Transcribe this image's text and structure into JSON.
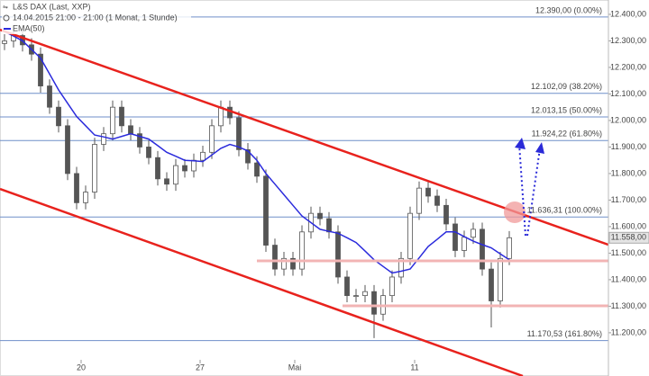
{
  "header": {
    "title": "L&S DAX (Last, XXP)",
    "subtitle": "14.04.2015 21:00 - 21:00 (1 Monat, 1 Stunde)"
  },
  "chart_data": {
    "type": "candlestick",
    "color_up": "#ffffff",
    "color_down": "#555555",
    "color_wick": "#555555",
    "open": [
      12290,
      12300,
      12320,
      12285,
      12250,
      12130,
      12050,
      11980,
      11800,
      11690,
      11730,
      11910,
      11950,
      12050,
      11980,
      11950,
      11900,
      11860,
      11780,
      11760,
      11830,
      11810,
      11850,
      11880,
      11980,
      12050,
      12010,
      11890,
      11840,
      11790,
      11530,
      11440,
      11480,
      11440,
      11580,
      11650,
      11630,
      11580,
      11410,
      11340,
      11340,
      11355,
      11270,
      11340,
      11410,
      11480,
      11650,
      11745,
      11715,
      11680,
      11610,
      11510,
      11560,
      11590,
      11440,
      11320,
      11480
    ],
    "high": [
      12325,
      12345,
      12345,
      12310,
      12275,
      12155,
      12075,
      12005,
      11825,
      11755,
      11935,
      11975,
      12075,
      12075,
      12005,
      11975,
      11925,
      11885,
      11805,
      11855,
      11855,
      11875,
      11905,
      12005,
      12075,
      12075,
      12035,
      11915,
      11865,
      11815,
      11555,
      11505,
      11505,
      11605,
      11675,
      11675,
      11655,
      11605,
      11435,
      11365,
      11380,
      11380,
      11365,
      11435,
      11505,
      11675,
      11770,
      11770,
      11740,
      11705,
      11635,
      11585,
      11615,
      11615,
      11465,
      11505,
      11583
    ],
    "low": [
      12265,
      12275,
      12260,
      12225,
      12105,
      12025,
      11955,
      11775,
      11665,
      11665,
      11705,
      11885,
      11925,
      11955,
      11925,
      11875,
      11835,
      11755,
      11735,
      11735,
      11785,
      11785,
      11825,
      11855,
      11955,
      11985,
      11865,
      11815,
      11765,
      11505,
      11415,
      11415,
      11415,
      11415,
      11555,
      11605,
      11555,
      11385,
      11315,
      11315,
      11315,
      11180,
      11245,
      11315,
      11385,
      11455,
      11625,
      11690,
      11655,
      11585,
      11485,
      11485,
      11535,
      11415,
      11220,
      11295,
      11455
    ],
    "close": [
      12300,
      12320,
      12285,
      12250,
      12130,
      12050,
      11980,
      11800,
      11690,
      11730,
      11910,
      11950,
      12050,
      11980,
      11950,
      11900,
      11860,
      11780,
      11760,
      11830,
      11810,
      11850,
      11880,
      11980,
      12050,
      12010,
      11890,
      11840,
      11790,
      11530,
      11440,
      11480,
      11440,
      11580,
      11650,
      11630,
      11580,
      11410,
      11340,
      11340,
      11355,
      11270,
      11340,
      11410,
      11480,
      11650,
      11745,
      11715,
      11680,
      11610,
      11510,
      11560,
      11590,
      11440,
      11320,
      11480,
      11558
    ],
    "overlays": [
      {
        "name": "EMA(50)",
        "color": "#2b2bdc",
        "values": [
          12335,
          12318,
          12300,
          12268,
          12235,
          12175,
          12115,
          12065,
          12015,
          11980,
          11945,
          11938,
          11930,
          11940,
          11950,
          11940,
          11930,
          11905,
          11880,
          11865,
          11850,
          11848,
          11845,
          11870,
          11895,
          11910,
          11900,
          11885,
          11850,
          11800,
          11760,
          11720,
          11680,
          11640,
          11615,
          11590,
          11582,
          11575,
          11558,
          11540,
          11508,
          11475,
          11450,
          11425,
          11432,
          11440,
          11482,
          11525,
          11552,
          11580,
          11580,
          11562,
          11545,
          11532,
          11520,
          11497,
          11475
        ]
      }
    ],
    "levels": [
      {
        "value": 12390,
        "label": "12.390,00 (0.00%)"
      },
      {
        "value": 12102.09,
        "label": "12.102,09 (38.20%)"
      },
      {
        "value": 12013.15,
        "label": "12.013,15 (50.00%)"
      },
      {
        "value": 11924.22,
        "label": "11.924,22 (61.80%)"
      },
      {
        "value": 11636.31,
        "label": "11.636,31 (100.00%)"
      },
      {
        "value": 11170.53,
        "label": "11.170,53 (161.80%)"
      }
    ],
    "level_color": "#6f8fc9",
    "last_price": {
      "value": 11558,
      "label": "11.558,00"
    },
    "xlim": [
      -0.5,
      67
    ],
    "xticks": [
      {
        "value": 8.5,
        "label": "20"
      },
      {
        "value": 21.7,
        "label": "27"
      },
      {
        "value": 32.2,
        "label": "Mai"
      },
      {
        "value": 45.5,
        "label": "11"
      }
    ],
    "ylim": [
      11037,
      12454
    ],
    "yticks": [
      {
        "value": 11200,
        "label": "11.200,00"
      },
      {
        "value": 11300,
        "label": "11.300,00"
      },
      {
        "value": 11400,
        "label": "11.400,00"
      },
      {
        "value": 11500,
        "label": "11.500,00"
      },
      {
        "value": 11600,
        "label": "11.600,00"
      },
      {
        "value": 11700,
        "label": "11.700,00"
      },
      {
        "value": 11800,
        "label": "11.800,00"
      },
      {
        "value": 11900,
        "label": "11.900,00"
      },
      {
        "value": 12000,
        "label": "12.000,00"
      },
      {
        "value": 12100,
        "label": "12.100,00"
      },
      {
        "value": 12200,
        "label": "12.200,00"
      },
      {
        "value": 12300,
        "label": "12.300,00"
      },
      {
        "value": 12400,
        "label": "12.400,00"
      }
    ]
  }
}
